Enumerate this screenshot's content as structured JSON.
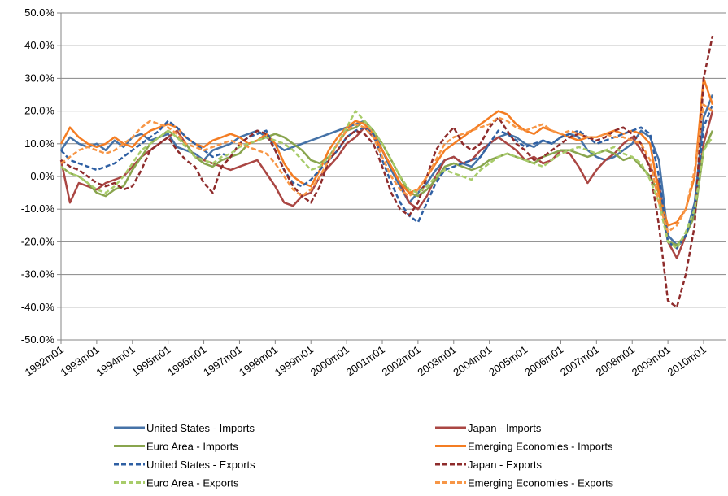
{
  "chart_data": {
    "type": "line",
    "categories": [
      "1992m01",
      null,
      null,
      null,
      "1993m01",
      null,
      null,
      null,
      "1994m01",
      null,
      null,
      null,
      "1995m01",
      null,
      null,
      null,
      "1996m01",
      null,
      null,
      null,
      "1997m01",
      null,
      null,
      null,
      "1998m01",
      null,
      null,
      null,
      "1999m01",
      null,
      null,
      null,
      "2000m01",
      null,
      null,
      null,
      "2001m01",
      null,
      null,
      null,
      "2002m01",
      null,
      null,
      null,
      "2003m01",
      null,
      null,
      null,
      "2004m01",
      null,
      null,
      null,
      "2005m01",
      null,
      null,
      null,
      "2006m01",
      null,
      null,
      null,
      "2007m01",
      null,
      null,
      null,
      "2008m01",
      null,
      null,
      null,
      "2009m01",
      null,
      null,
      null,
      "2010m01",
      null
    ],
    "ylim": [
      -50,
      50
    ],
    "yticks": [
      {
        "value": -50,
        "label": "-50.0%"
      },
      {
        "value": -40,
        "label": "-40.0%"
      },
      {
        "value": -30,
        "label": "-30.0%"
      },
      {
        "value": -20,
        "label": "-20.0%"
      },
      {
        "value": -10,
        "label": "-10.0%"
      },
      {
        "value": 0,
        "label": "0.0%"
      },
      {
        "value": 10,
        "label": "10.0%"
      },
      {
        "value": 20,
        "label": "20.0%"
      },
      {
        "value": 30,
        "label": "30.0%"
      },
      {
        "value": 40,
        "label": "40.0%"
      },
      {
        "value": 50,
        "label": "50.0%"
      }
    ],
    "grid": true,
    "series": [
      {
        "name": "United States - Imports",
        "color": "#4572a7",
        "style": "solid",
        "values": [
          8,
          12,
          10,
          9,
          10,
          8,
          11,
          9,
          12,
          13,
          11,
          12,
          13,
          9,
          8,
          7,
          5,
          8,
          9,
          10,
          12,
          13,
          14,
          12,
          10,
          8,
          9,
          10,
          11,
          12,
          13,
          14,
          15,
          16,
          17,
          14,
          8,
          2,
          -3,
          -8,
          -5,
          -2,
          2,
          5,
          6,
          4,
          3,
          6,
          10,
          12,
          13,
          12,
          10,
          9,
          11,
          10,
          12,
          13,
          12,
          8,
          6,
          5,
          6,
          8,
          10,
          14,
          12,
          5,
          -18,
          -21,
          -18,
          -8,
          18,
          25
        ]
      },
      {
        "name": "Japan - Imports",
        "color": "#aa4643",
        "style": "solid",
        "values": [
          5,
          -8,
          -2,
          -3,
          -4,
          -2,
          -1,
          0,
          3,
          6,
          8,
          10,
          12,
          14,
          10,
          6,
          5,
          4,
          3,
          2,
          3,
          4,
          5,
          1,
          -3,
          -8,
          -9,
          -6,
          -5,
          0,
          3,
          6,
          10,
          12,
          15,
          12,
          8,
          3,
          -2,
          -8,
          -10,
          -6,
          0,
          5,
          6,
          4,
          5,
          8,
          10,
          12,
          10,
          8,
          5,
          6,
          4,
          5,
          8,
          7,
          3,
          -2,
          2,
          5,
          7,
          10,
          12,
          8,
          3,
          -2,
          -20,
          -25,
          -18,
          -10,
          10,
          20
        ]
      },
      {
        "name": "Euro Area - Imports",
        "color": "#89a54e",
        "style": "solid",
        "values": [
          3,
          1,
          0,
          -2,
          -5,
          -6,
          -4,
          -3,
          2,
          6,
          10,
          12,
          14,
          12,
          10,
          6,
          4,
          3,
          5,
          6,
          7,
          10,
          11,
          12,
          13,
          12,
          10,
          8,
          5,
          4,
          6,
          10,
          14,
          15,
          17,
          14,
          10,
          5,
          0,
          -5,
          -6,
          -4,
          -1,
          3,
          4,
          3,
          2,
          3,
          5,
          6,
          7,
          6,
          5,
          4,
          6,
          7,
          8,
          8,
          7,
          6,
          7,
          8,
          7,
          5,
          6,
          3,
          0,
          -5,
          -20,
          -21,
          -18,
          -12,
          8,
          14
        ]
      },
      {
        "name": "Emerging Economies - Imports",
        "color": "#f47d23",
        "style": "solid",
        "values": [
          10,
          15,
          12,
          10,
          9,
          10,
          12,
          10,
          9,
          12,
          14,
          15,
          16,
          15,
          12,
          10,
          9,
          11,
          12,
          13,
          12,
          10,
          11,
          13,
          10,
          4,
          0,
          -2,
          -3,
          2,
          8,
          12,
          15,
          17,
          16,
          13,
          8,
          3,
          -2,
          -5,
          -4,
          0,
          4,
          8,
          10,
          12,
          14,
          16,
          18,
          20,
          19,
          16,
          14,
          13,
          15,
          14,
          13,
          12,
          11,
          12,
          12,
          13,
          14,
          13,
          14,
          13,
          10,
          -5,
          -15,
          -14,
          -10,
          0,
          30,
          22
        ]
      },
      {
        "name": "United States - Exports",
        "color": "#2e5fa3",
        "style": "dashed",
        "values": [
          8,
          5,
          4,
          3,
          2,
          3,
          4,
          6,
          8,
          10,
          12,
          14,
          17,
          15,
          12,
          10,
          8,
          6,
          7,
          6,
          10,
          12,
          13,
          14,
          8,
          2,
          -2,
          -3,
          -1,
          2,
          5,
          8,
          12,
          14,
          15,
          13,
          5,
          -2,
          -8,
          -12,
          -14,
          -8,
          -2,
          2,
          3,
          4,
          5,
          6,
          10,
          14,
          13,
          11,
          9,
          10,
          11,
          10,
          12,
          13,
          14,
          12,
          10,
          11,
          12,
          13,
          14,
          15,
          13,
          0,
          -20,
          -22,
          -18,
          -10,
          15,
          22
        ]
      },
      {
        "name": "Japan - Exports",
        "color": "#8e2b2b",
        "style": "dashed",
        "values": [
          5,
          3,
          2,
          0,
          -2,
          -3,
          -2,
          -4,
          -3,
          2,
          8,
          10,
          12,
          8,
          5,
          3,
          -2,
          -5,
          3,
          6,
          10,
          12,
          14,
          13,
          8,
          2,
          -3,
          -6,
          -8,
          -3,
          5,
          8,
          12,
          14,
          13,
          10,
          3,
          -5,
          -10,
          -12,
          -8,
          0,
          8,
          12,
          15,
          10,
          8,
          10,
          15,
          18,
          14,
          10,
          8,
          5,
          6,
          8,
          10,
          12,
          13,
          12,
          11,
          12,
          14,
          15,
          13,
          10,
          2,
          -15,
          -38,
          -40,
          -30,
          -15,
          30,
          43
        ]
      },
      {
        "name": "Euro Area - Exports",
        "color": "#a8cc6a",
        "style": "dashed",
        "values": [
          3,
          1,
          0,
          -2,
          -4,
          -5,
          -3,
          0,
          4,
          8,
          10,
          12,
          14,
          12,
          9,
          6,
          5,
          4,
          6,
          7,
          9,
          10,
          11,
          12,
          11,
          10,
          8,
          5,
          2,
          3,
          6,
          10,
          15,
          20,
          17,
          14,
          10,
          5,
          0,
          -4,
          -5,
          -3,
          0,
          2,
          1,
          0,
          -1,
          2,
          4,
          6,
          7,
          6,
          5,
          4,
          3,
          5,
          7,
          8,
          9,
          8,
          7,
          8,
          9,
          7,
          6,
          4,
          -1,
          -8,
          -20,
          -22,
          -17,
          -10,
          8,
          12
        ]
      },
      {
        "name": "Emerging Economies - Exports",
        "color": "#f79646",
        "style": "dashed",
        "values": [
          4,
          6,
          8,
          9,
          8,
          7,
          8,
          10,
          12,
          15,
          17,
          16,
          15,
          13,
          10,
          9,
          8,
          9,
          10,
          11,
          10,
          9,
          8,
          7,
          4,
          0,
          -4,
          -6,
          -4,
          0,
          5,
          10,
          14,
          16,
          15,
          12,
          6,
          0,
          -4,
          -6,
          -4,
          0,
          5,
          10,
          12,
          13,
          14,
          15,
          16,
          18,
          17,
          15,
          14,
          15,
          16,
          14,
          13,
          14,
          13,
          12,
          12,
          13,
          12,
          12,
          11,
          10,
          5,
          -8,
          -17,
          -15,
          -10,
          2,
          22,
          20
        ]
      }
    ]
  }
}
